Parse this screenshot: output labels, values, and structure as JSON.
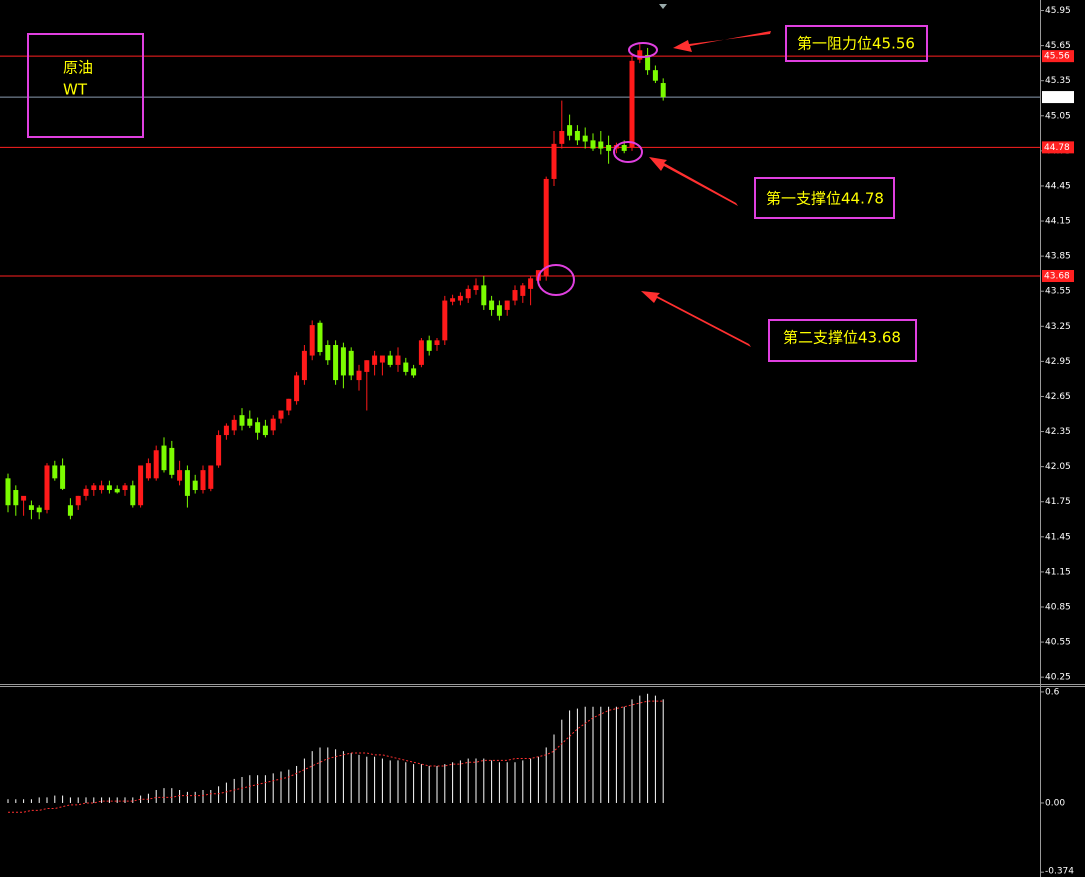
{
  "chart_data": [
    {
      "type": "candlestick",
      "title": "原油",
      "subtitle": "WT",
      "up_color": "#ff1a1a",
      "down_color": "#7cfc00",
      "open": [
        41.95,
        41.85,
        41.76,
        41.72,
        41.7,
        41.68,
        42.06,
        42.06,
        41.72,
        41.72,
        41.8,
        41.85,
        41.85,
        41.89,
        41.86,
        41.85,
        41.89,
        41.72,
        41.95,
        41.95,
        42.23,
        42.21,
        41.93,
        42.02,
        41.93,
        41.85,
        41.86,
        42.06,
        42.32,
        42.36,
        42.49,
        42.46,
        42.43,
        42.4,
        42.36,
        42.46,
        42.53,
        42.61,
        42.79,
        43.0,
        43.28,
        43.09,
        43.09,
        43.07,
        43.04,
        42.79,
        42.86,
        42.92,
        42.94,
        43.0,
        42.92,
        42.94,
        42.89,
        42.92,
        43.13,
        43.09,
        43.13,
        43.46,
        43.47,
        43.49,
        43.56,
        43.6,
        43.47,
        43.43,
        43.39,
        43.47,
        43.51,
        43.57,
        43.64,
        43.68,
        44.51,
        44.81,
        44.97,
        44.92,
        44.88,
        44.84,
        44.83,
        44.8,
        44.77,
        44.8,
        44.78,
        45.53,
        45.57,
        45.44,
        45.33
      ],
      "high": [
        41.99,
        41.89,
        41.78,
        41.76,
        41.72,
        42.08,
        42.1,
        42.12,
        41.78,
        41.8,
        41.89,
        41.91,
        41.93,
        41.93,
        41.89,
        41.91,
        41.93,
        42.06,
        42.12,
        42.23,
        42.3,
        42.27,
        42.1,
        42.06,
        41.98,
        42.06,
        42.06,
        42.36,
        42.42,
        42.49,
        42.55,
        42.53,
        42.47,
        42.45,
        42.49,
        42.53,
        42.63,
        42.86,
        43.09,
        43.3,
        43.3,
        43.13,
        43.13,
        43.11,
        43.07,
        42.92,
        42.96,
        43.04,
        43.0,
        43.04,
        43.07,
        42.98,
        42.92,
        43.15,
        43.17,
        43.15,
        43.51,
        43.52,
        43.54,
        43.6,
        43.66,
        43.68,
        43.51,
        43.47,
        43.47,
        43.6,
        43.62,
        43.68,
        43.73,
        44.53,
        44.92,
        45.18,
        45.06,
        44.97,
        44.95,
        44.9,
        44.92,
        44.88,
        44.82,
        44.84,
        45.56,
        45.66,
        45.63,
        45.48,
        45.37
      ],
      "low": [
        41.66,
        41.63,
        41.63,
        41.6,
        41.6,
        41.65,
        41.93,
        41.85,
        41.6,
        41.68,
        41.76,
        41.8,
        41.82,
        41.82,
        41.82,
        41.8,
        41.7,
        41.7,
        41.93,
        41.93,
        42.0,
        41.95,
        41.89,
        41.7,
        41.82,
        41.82,
        41.84,
        42.04,
        42.28,
        42.32,
        42.36,
        42.38,
        42.28,
        42.3,
        42.32,
        42.42,
        42.49,
        42.58,
        42.75,
        42.96,
        43.0,
        42.92,
        42.75,
        42.72,
        42.79,
        42.7,
        42.53,
        42.83,
        42.83,
        42.9,
        42.86,
        42.83,
        42.81,
        42.9,
        43.0,
        43.04,
        43.09,
        43.43,
        43.43,
        43.45,
        43.52,
        43.39,
        43.34,
        43.3,
        43.34,
        43.43,
        43.45,
        43.43,
        43.6,
        43.64,
        44.45,
        44.77,
        44.84,
        44.8,
        44.77,
        44.75,
        44.72,
        44.64,
        44.73,
        44.73,
        44.75,
        45.5,
        45.4,
        45.33,
        45.18
      ],
      "close": [
        41.72,
        41.72,
        41.8,
        41.68,
        41.66,
        42.06,
        41.95,
        41.86,
        41.63,
        41.8,
        41.86,
        41.89,
        41.89,
        41.85,
        41.83,
        41.89,
        41.72,
        42.06,
        42.08,
        42.19,
        42.02,
        41.98,
        42.02,
        41.8,
        41.85,
        42.02,
        42.06,
        42.32,
        42.4,
        42.45,
        42.4,
        42.4,
        42.34,
        42.32,
        42.46,
        42.53,
        42.63,
        42.83,
        43.04,
        43.26,
        43.03,
        42.96,
        42.79,
        42.83,
        42.83,
        42.87,
        42.96,
        43.0,
        43.0,
        42.92,
        43.0,
        42.86,
        42.83,
        43.13,
        43.04,
        43.13,
        43.47,
        43.49,
        43.51,
        43.57,
        43.6,
        43.43,
        43.39,
        43.34,
        43.47,
        43.56,
        43.6,
        43.66,
        43.73,
        44.51,
        44.81,
        44.92,
        44.88,
        44.84,
        44.83,
        44.77,
        44.77,
        44.75,
        44.8,
        44.75,
        45.52,
        45.61,
        45.44,
        45.35,
        45.21
      ],
      "ylim": [
        40.2,
        46.04
      ],
      "yticks": [
        45.95,
        45.65,
        45.35,
        45.05,
        44.75,
        44.45,
        44.15,
        43.85,
        43.55,
        43.25,
        42.95,
        42.65,
        42.35,
        42.05,
        41.75,
        41.45,
        41.15,
        40.85,
        40.55,
        40.25
      ],
      "levels": [
        {
          "value": 45.56,
          "color": "#ff2020"
        },
        {
          "value": 45.21,
          "color": "#8a9bb0"
        },
        {
          "value": 44.78,
          "color": "#ff2020"
        },
        {
          "value": 43.68,
          "color": "#ff2020"
        }
      ],
      "annotations": [
        "第一阻力位45.56",
        "第一支撑位44.78",
        "第二支撑位43.68"
      ]
    },
    {
      "type": "bar",
      "series": [
        {
          "color": "#ffffff",
          "values": [
            0.02,
            0.02,
            0.02,
            0.02,
            0.03,
            0.03,
            0.04,
            0.04,
            0.03,
            0.03,
            0.03,
            0.03,
            0.03,
            0.03,
            0.03,
            0.03,
            0.03,
            0.04,
            0.05,
            0.07,
            0.08,
            0.08,
            0.07,
            0.06,
            0.06,
            0.07,
            0.07,
            0.09,
            0.11,
            0.13,
            0.14,
            0.15,
            0.15,
            0.15,
            0.16,
            0.17,
            0.18,
            0.2,
            0.24,
            0.28,
            0.3,
            0.3,
            0.29,
            0.28,
            0.27,
            0.26,
            0.25,
            0.25,
            0.24,
            0.23,
            0.23,
            0.22,
            0.21,
            0.21,
            0.2,
            0.2,
            0.21,
            0.22,
            0.23,
            0.24,
            0.24,
            0.24,
            0.23,
            0.22,
            0.22,
            0.22,
            0.23,
            0.24,
            0.25,
            0.3,
            0.37,
            0.45,
            0.5,
            0.51,
            0.52,
            0.52,
            0.52,
            0.52,
            0.52,
            0.52,
            0.56,
            0.58,
            0.59,
            0.58,
            0.56
          ]
        },
        {
          "type": "line",
          "color": "#ff3030",
          "values": [
            -0.05,
            -0.05,
            -0.05,
            -0.04,
            -0.04,
            -0.03,
            -0.03,
            -0.02,
            -0.01,
            -0.01,
            0,
            0,
            0.01,
            0.01,
            0.01,
            0.01,
            0.01,
            0.02,
            0.02,
            0.03,
            0.03,
            0.03,
            0.04,
            0.04,
            0.04,
            0.04,
            0.05,
            0.05,
            0.06,
            0.07,
            0.08,
            0.09,
            0.1,
            0.11,
            0.12,
            0.13,
            0.14,
            0.16,
            0.18,
            0.2,
            0.22,
            0.24,
            0.25,
            0.26,
            0.27,
            0.27,
            0.27,
            0.26,
            0.26,
            0.25,
            0.24,
            0.23,
            0.22,
            0.21,
            0.2,
            0.2,
            0.2,
            0.21,
            0.21,
            0.22,
            0.22,
            0.23,
            0.23,
            0.23,
            0.23,
            0.24,
            0.24,
            0.24,
            0.25,
            0.26,
            0.28,
            0.32,
            0.36,
            0.4,
            0.43,
            0.46,
            0.48,
            0.5,
            0.51,
            0.52,
            0.53,
            0.54,
            0.55,
            0.55,
            0.55
          ]
        }
      ],
      "ylim": [
        -0.4,
        0.632
      ],
      "yticks": [
        0.6,
        {
          "value": 0,
          "label": "0.00"
        },
        -0.374
      ]
    }
  ]
}
